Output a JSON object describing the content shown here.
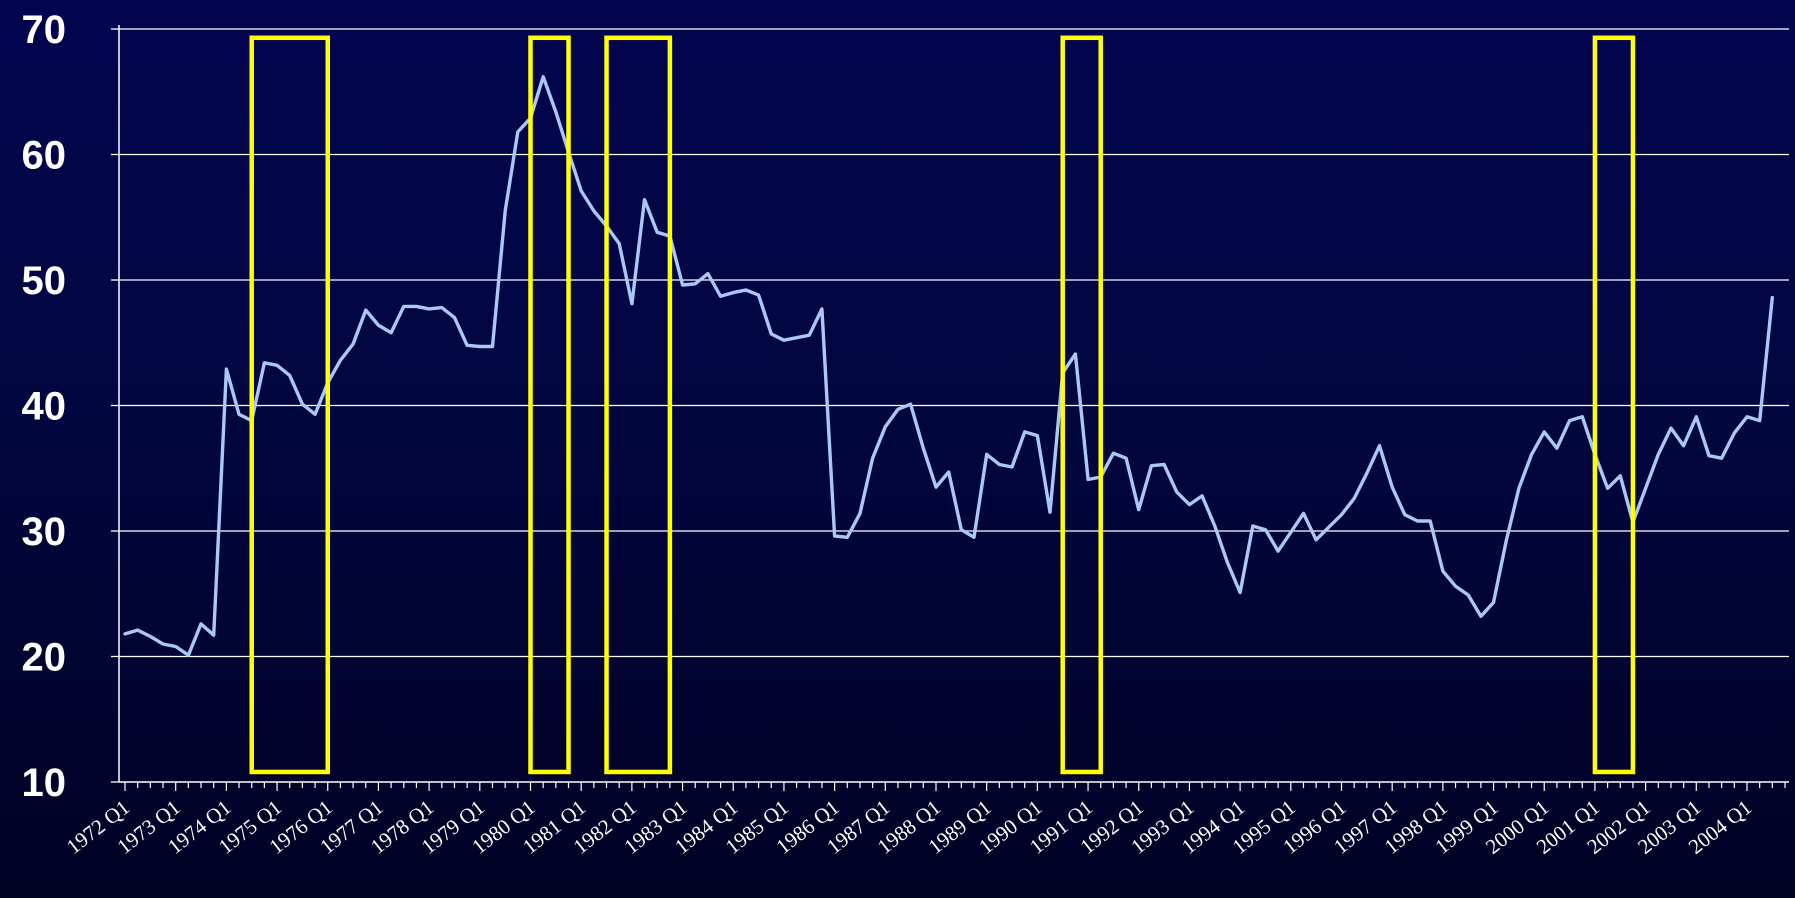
{
  "chart_data": {
    "type": "line",
    "title": "",
    "xlabel": "",
    "ylabel": "",
    "ylim": [
      10,
      70
    ],
    "yticks": [
      10,
      20,
      30,
      40,
      50,
      60,
      70
    ],
    "x_start": "1972 Q1",
    "x_end": "2004 Q4",
    "xtick_labels": [
      "1972 Q1",
      "1973 Q1",
      "1974 Q1",
      "1975 Q1",
      "1976 Q1",
      "1977 Q1",
      "1978 Q1",
      "1979 Q1",
      "1980 Q1",
      "1981 Q1",
      "1982 Q1",
      "1983 Q1",
      "1984 Q1",
      "1985 Q1",
      "1986 Q1",
      "1987 Q1",
      "1988 Q1",
      "1989 Q1",
      "1990 Q1",
      "1991 Q1",
      "1992 Q1",
      "1993 Q1",
      "1994 Q1",
      "1995 Q1",
      "1996 Q1",
      "1997 Q1",
      "1998 Q1",
      "1999 Q1",
      "2000 Q1",
      "2001 Q1",
      "2002 Q1",
      "2003 Q1",
      "2004 Q1"
    ],
    "grid": "horizontal",
    "series": [
      {
        "color": "#aac8f5",
        "values": [
          21.8,
          22.1,
          21.6,
          21.0,
          20.8,
          20.1,
          22.6,
          21.7,
          42.9,
          39.3,
          38.8,
          43.4,
          43.2,
          42.4,
          40.1,
          39.3,
          41.8,
          43.6,
          44.9,
          47.6,
          46.4,
          45.8,
          47.9,
          47.9,
          47.7,
          47.8,
          47.0,
          44.8,
          44.7,
          44.7,
          55.5,
          61.8,
          62.9,
          66.2,
          63.4,
          60.2,
          57.1,
          55.5,
          54.3,
          52.9,
          48.1,
          56.4,
          53.8,
          53.5,
          49.6,
          49.7,
          50.5,
          48.7,
          49.0,
          49.2,
          48.8,
          45.7,
          45.2,
          45.4,
          45.6,
          47.7,
          29.6,
          29.5,
          31.4,
          35.8,
          38.3,
          39.7,
          40.1,
          36.6,
          33.5,
          34.7,
          30.1,
          29.5,
          36.1,
          35.3,
          35.1,
          37.9,
          37.6,
          31.5,
          42.6,
          44.1,
          34.1,
          34.3,
          36.2,
          35.8,
          31.7,
          35.2,
          35.3,
          33.1,
          32.1,
          32.8,
          30.4,
          27.5,
          25.1,
          30.4,
          30.1,
          28.4,
          29.9,
          31.4,
          29.3,
          30.3,
          31.3,
          32.6,
          34.6,
          36.8,
          33.5,
          31.3,
          30.8,
          30.8,
          26.8,
          25.6,
          24.9,
          23.2,
          24.3,
          29.2,
          33.4,
          36.1,
          37.9,
          36.6,
          38.8,
          39.1,
          36.1,
          33.4,
          34.4,
          30.7,
          33.4,
          36.1,
          38.2,
          36.8,
          39.1,
          36.0,
          35.8,
          37.8,
          39.1,
          38.8,
          48.6
        ]
      }
    ],
    "highlight_boxes": [
      {
        "from": "1974 Q3",
        "to": "1976 Q1",
        "color": "#ffff00",
        "ylim": [
          10.8,
          69.3
        ]
      },
      {
        "from": "1980 Q1",
        "to": "1980 Q4",
        "color": "#ffff00",
        "ylim": [
          10.8,
          69.3
        ]
      },
      {
        "from": "1981 Q3",
        "to": "1982 Q4",
        "color": "#ffff00",
        "ylim": [
          10.8,
          69.3
        ]
      },
      {
        "from": "1990 Q3",
        "to": "1991 Q2",
        "color": "#ffff00",
        "ylim": [
          10.8,
          69.3
        ]
      },
      {
        "from": "2001 Q1",
        "to": "2001 Q4",
        "color": "#ffff00",
        "ylim": [
          10.8,
          69.3
        ]
      }
    ]
  }
}
